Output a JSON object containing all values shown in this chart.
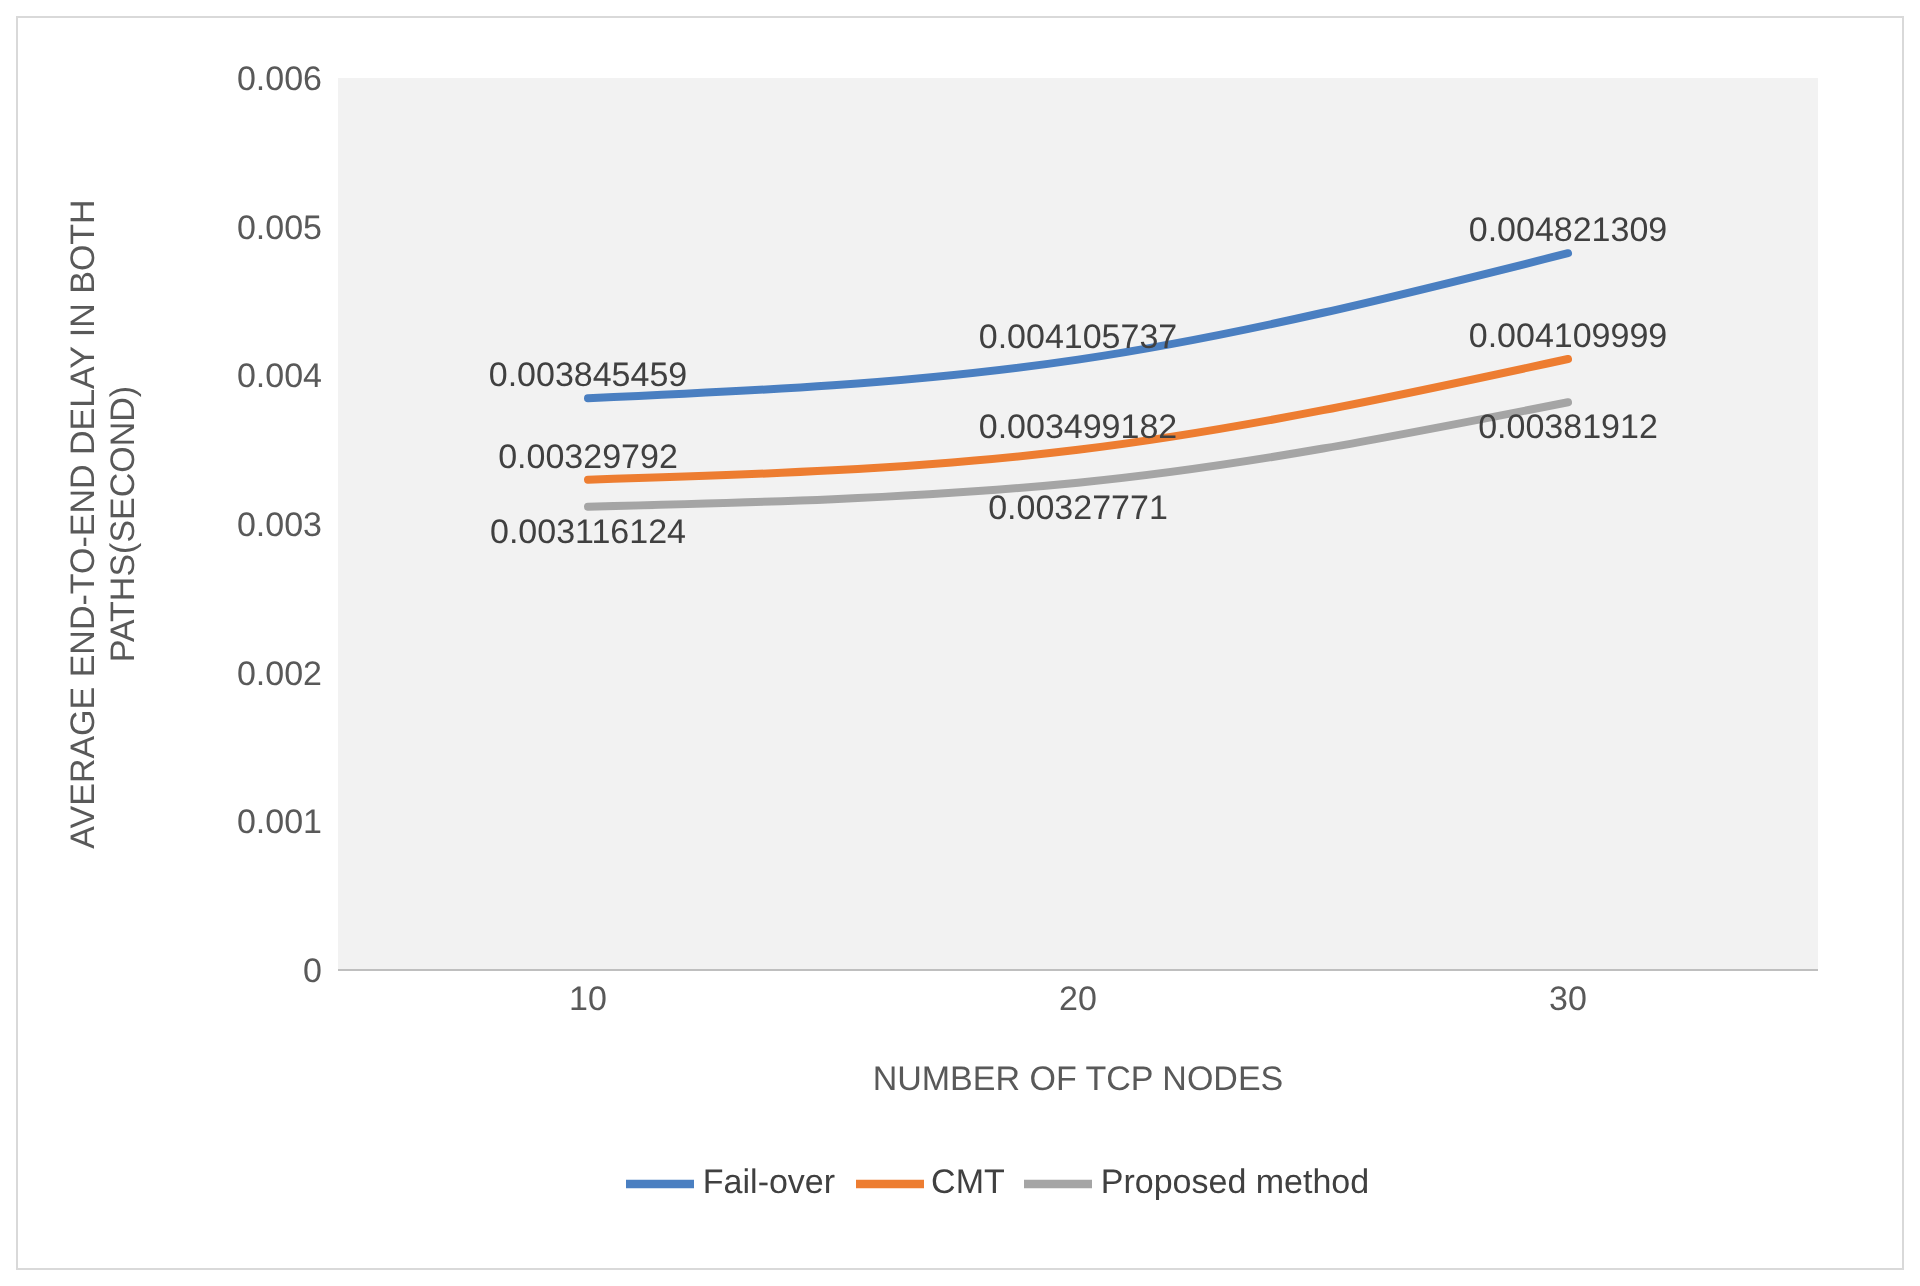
{
  "chart_data": {
    "type": "line",
    "xlabel": "NUMBER OF TCP NODES",
    "ylabel": "AVERAGE END-TO-END DELAY IN BOTH PATHS(SECOND)",
    "categories": [
      "10",
      "20",
      "30"
    ],
    "series": [
      {
        "name": "Fail-over",
        "color": "#4a7fc1",
        "values": [
          0.003845459,
          0.004105737,
          0.004821309
        ]
      },
      {
        "name": "CMT",
        "color": "#ed7d31",
        "values": [
          0.00329792,
          0.003499182,
          0.004109999
        ]
      },
      {
        "name": "Proposed method",
        "color": "#a5a5a5",
        "values": [
          0.003116124,
          0.00327771,
          0.00381912
        ]
      }
    ],
    "ylim": [
      0,
      0.006
    ],
    "yticks": [
      0,
      0.001,
      0.002,
      0.003,
      0.004,
      0.005,
      0.006
    ],
    "grid": false,
    "legend": "bottom",
    "marker": "none",
    "line_style": "solid",
    "data_labels": true
  }
}
